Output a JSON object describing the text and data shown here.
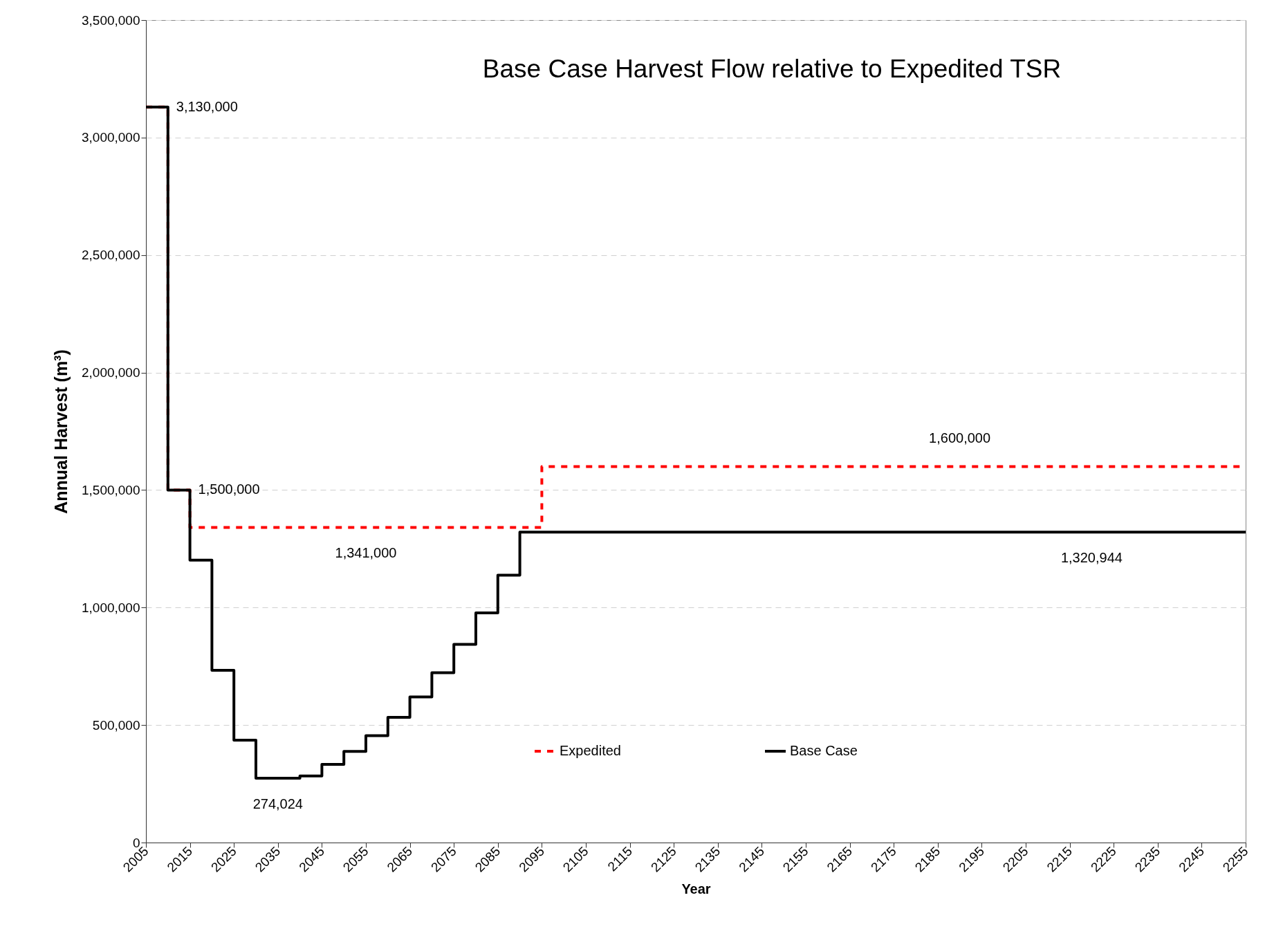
{
  "chart_data": {
    "type": "step",
    "title": "Base Case Harvest Flow relative to Expedited TSR",
    "xlabel": "Year",
    "ylabel": "Annual Harvest (m³)",
    "xlim": [
      2005,
      2255
    ],
    "xticks": [
      2005,
      2015,
      2025,
      2035,
      2045,
      2055,
      2065,
      2075,
      2085,
      2095,
      2105,
      2115,
      2125,
      2135,
      2145,
      2155,
      2165,
      2175,
      2185,
      2195,
      2205,
      2215,
      2225,
      2235,
      2245,
      2255
    ],
    "ylim": [
      0,
      3500000
    ],
    "yticks": [
      0,
      {
        "value": 500000,
        "label": "500,000"
      },
      {
        "value": 1000000,
        "label": "1,000,000"
      },
      {
        "value": 1500000,
        "label": "1,500,000"
      },
      {
        "value": 2000000,
        "label": "2,000,000"
      },
      {
        "value": 2500000,
        "label": "2,500,000"
      },
      {
        "value": 3000000,
        "label": "3,000,000"
      },
      {
        "value": 3500000,
        "label": "3,500,000"
      }
    ],
    "grid": "y",
    "legend": "bottom",
    "marker": "none",
    "series": [
      {
        "name": "Expedited",
        "color": "#ff0000",
        "line_style": "dashed",
        "x": [
          2005,
          2010,
          2015,
          2095,
          2255
        ],
        "values": [
          3130000,
          1500000,
          1341000,
          1600000,
          1600000
        ]
      },
      {
        "name": "Base Case",
        "color": "#000000",
        "line_style": "solid",
        "x": [
          2005,
          2010,
          2015,
          2020,
          2025,
          2030,
          2040,
          2045,
          2050,
          2055,
          2060,
          2065,
          2070,
          2075,
          2080,
          2085,
          2090,
          2255
        ],
        "values": [
          3130000,
          1500000,
          1202000,
          733000,
          436000,
          274024,
          283000,
          333000,
          388000,
          455000,
          533000,
          620000,
          723000,
          843000,
          977000,
          1138000,
          1320944,
          1320944
        ]
      }
    ],
    "annotations": [
      {
        "text": "3,130,000",
        "x": 2010,
        "y": 3130000
      },
      {
        "text": "1,500,000",
        "x": 2015,
        "y": 1500000
      },
      {
        "text": "1,341,000",
        "x": 2055,
        "y": 1341000
      },
      {
        "text": "274,024",
        "x": 2035,
        "y": 274024
      },
      {
        "text": "1,600,000",
        "x": 2190,
        "y": 1600000
      },
      {
        "text": "1,320,944",
        "x": 2220,
        "y": 1320944
      }
    ]
  }
}
